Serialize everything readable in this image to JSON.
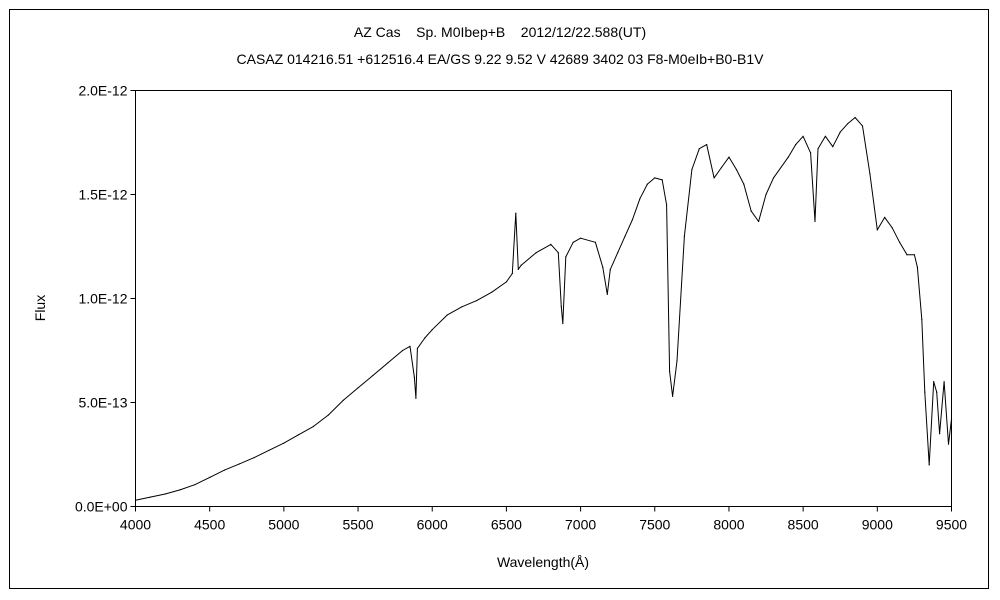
{
  "chart_data": {
    "type": "line",
    "title": "AZ Cas    Sp. M0Ibep+B    2012/12/22.588(UT)",
    "subtitle": "CASAZ 014216.51 +612516.4 EA/GS 9.22 9.52 V 42689 3402 03 F8-M0eIb+B0-B1V",
    "xlabel": "Wavelength(Å)",
    "ylabel": "Flux",
    "xlim": [
      4000,
      9500
    ],
    "ylim": [
      0,
      2e-12
    ],
    "xticks": [
      4000,
      4500,
      5000,
      5500,
      6000,
      6500,
      7000,
      7500,
      8000,
      8500,
      9000,
      9500
    ],
    "yticks": [
      0,
      5e-13,
      1e-12,
      1.5e-12,
      2e-12
    ],
    "ytick_labels": [
      "0.0E+00",
      "5.0E-13",
      "1.0E-12",
      "1.5E-12",
      "2.0E-12"
    ],
    "grid": false,
    "legend": "none",
    "line_color": "#000000",
    "series": [
      {
        "x": [
          4000,
          4100,
          4200,
          4300,
          4400,
          4500,
          4600,
          4700,
          4800,
          4900,
          5000,
          5100,
          5200,
          5300,
          5400,
          5500,
          5600,
          5700,
          5800,
          5850,
          5880,
          5890,
          5900,
          5950,
          6000,
          6100,
          6200,
          6300,
          6400,
          6500,
          6540,
          6563,
          6580,
          6600,
          6700,
          6800,
          6850,
          6870,
          6880,
          6900,
          6950,
          7000,
          7100,
          7150,
          7180,
          7200,
          7250,
          7300,
          7350,
          7400,
          7450,
          7500,
          7550,
          7580,
          7600,
          7620,
          7650,
          7700,
          7750,
          7800,
          7850,
          7900,
          7950,
          8000,
          8050,
          8100,
          8150,
          8200,
          8250,
          8300,
          8400,
          8450,
          8500,
          8550,
          8580,
          8600,
          8650,
          8700,
          8750,
          8800,
          8850,
          8900,
          8950,
          9000,
          9050,
          9100,
          9150,
          9200,
          9250,
          9270,
          9300,
          9320,
          9350,
          9380,
          9400,
          9420,
          9450,
          9480,
          9500
        ],
        "values": [
          3e-14,
          4.5e-14,
          6e-14,
          8e-14,
          1.05e-13,
          1.4e-13,
          1.75e-13,
          2.05e-13,
          2.35e-13,
          2.7e-13,
          3.05e-13,
          3.45e-13,
          3.85e-13,
          4.4e-13,
          5.1e-13,
          5.7e-13,
          6.3e-13,
          6.9e-13,
          7.5e-13,
          7.7e-13,
          6.2e-13,
          5.2e-13,
          7.6e-13,
          8.1e-13,
          8.5e-13,
          9.2e-13,
          9.6e-13,
          9.9e-13,
          1.03e-12,
          1.08e-12,
          1.12e-12,
          1.41e-12,
          1.14e-12,
          1.16e-12,
          1.22e-12,
          1.26e-12,
          1.22e-12,
          9.6e-13,
          8.8e-13,
          1.2e-12,
          1.27e-12,
          1.29e-12,
          1.27e-12,
          1.15e-12,
          1.02e-12,
          1.14e-12,
          1.22e-12,
          1.3e-12,
          1.38e-12,
          1.48e-12,
          1.55e-12,
          1.58e-12,
          1.57e-12,
          1.45e-12,
          6.5e-13,
          5.3e-13,
          7e-13,
          1.3e-12,
          1.62e-12,
          1.72e-12,
          1.74e-12,
          1.58e-12,
          1.63e-12,
          1.68e-12,
          1.62e-12,
          1.55e-12,
          1.42e-12,
          1.37e-12,
          1.5e-12,
          1.58e-12,
          1.68e-12,
          1.74e-12,
          1.78e-12,
          1.7e-12,
          1.37e-12,
          1.72e-12,
          1.78e-12,
          1.73e-12,
          1.8e-12,
          1.84e-12,
          1.87e-12,
          1.83e-12,
          1.6e-12,
          1.33e-12,
          1.39e-12,
          1.34e-12,
          1.27e-12,
          1.21e-12,
          1.21e-12,
          1.15e-12,
          9e-13,
          5.5e-13,
          2e-13,
          6e-13,
          5.5e-13,
          3.5e-13,
          6e-13,
          3e-13,
          4.2e-13
        ]
      }
    ]
  }
}
